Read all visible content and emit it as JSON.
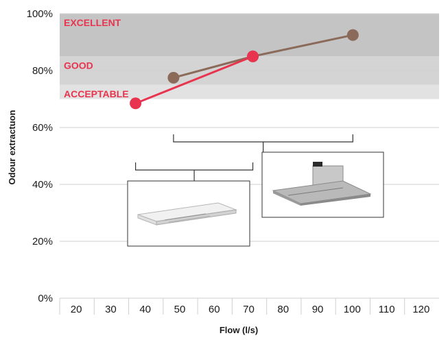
{
  "chart_data": {
    "type": "line",
    "xlabel": "Flow (l/s)",
    "ylabel": "Odour extractuon",
    "x_ticks": [
      "20",
      "30",
      "40",
      "50",
      "60",
      "70",
      "80",
      "90",
      "100",
      "110",
      "120"
    ],
    "y_ticks": [
      "0%",
      "20%",
      "40%",
      "60%",
      "80%",
      "100%"
    ],
    "xlim": [
      15,
      125
    ],
    "ylim": [
      0,
      100
    ],
    "bands": [
      {
        "label": "EXCELLENT",
        "from": 85,
        "to": 100,
        "color": "#c4c4c4"
      },
      {
        "label": "GOOD",
        "from": 75,
        "to": 85,
        "color": "#d4d4d4"
      },
      {
        "label": "ACCEPTABLE",
        "from": 70,
        "to": 75,
        "color": "#e2e2e2"
      }
    ],
    "band_label_color": "#e8344e",
    "series": [
      {
        "color": "#e8344e",
        "points": [
          [
            37,
            68.5
          ],
          [
            71,
            85
          ]
        ]
      },
      {
        "color": "#8b6a5a",
        "points": [
          [
            48,
            77.5
          ],
          [
            71,
            85
          ],
          [
            100,
            92.5
          ]
        ]
      }
    ],
    "annotations": [
      {
        "kind": "product-image",
        "product": "slimline hood",
        "bracket_x": [
          37,
          71
        ]
      },
      {
        "kind": "product-image",
        "product": "telescopic hood",
        "bracket_x": [
          48,
          100
        ]
      }
    ]
  }
}
